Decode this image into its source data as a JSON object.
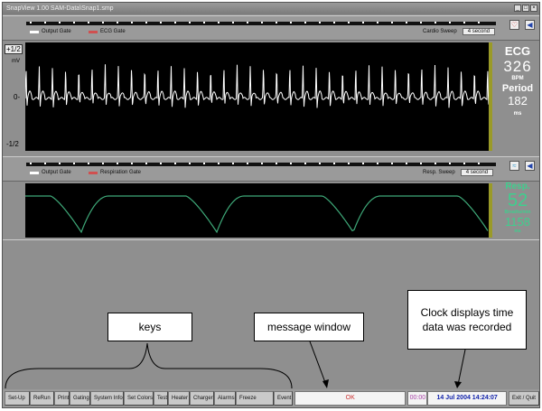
{
  "window": {
    "title": "SnapView 1.00  SAM-Data\\Snap1.smp"
  },
  "ecg_strip": {
    "legend": [
      {
        "label": "Output Gate",
        "color": "#ffffff"
      },
      {
        "label": "ECG Gate",
        "color": "#d05050"
      }
    ],
    "sweep_label": "Cardio Sweep",
    "sweep_value": "4 second",
    "heart_icon": "heart-icon",
    "sound_icon": "speaker-icon"
  },
  "ecg_plot": {
    "y_top": "+1/2",
    "unit": "mV",
    "y_zero": "0-",
    "y_bottom": "-1/2",
    "trace_color": "#ffffff"
  },
  "ecg_info": {
    "title": "ECG",
    "rate": "326",
    "rate_unit": "BPM",
    "period_label": "Period",
    "period": "182",
    "period_unit": "ms"
  },
  "resp_strip": {
    "legend": [
      {
        "label": "Output Gate",
        "color": "#ffffff"
      },
      {
        "label": "Respiration Gate",
        "color": "#d05050"
      }
    ],
    "sweep_label": "Resp. Sweep",
    "sweep_value": "4 second"
  },
  "resp_info": {
    "title": "Resp.",
    "rate": "52",
    "rate_unit": "Breaths/min",
    "period": "1158",
    "period_unit": "ms",
    "color": "#3ecf8e"
  },
  "annotations": {
    "keys": "keys",
    "message": "message window",
    "clock": "Clock displays time data was recorded"
  },
  "keys": [
    "Set-Up",
    "ReRun",
    "Print",
    "Gating",
    "System Info",
    "Set Colors",
    "Test",
    "Heater",
    "Charger",
    "Alarms",
    "Freeze",
    "Event"
  ],
  "status": {
    "message": "OK",
    "counter": "00:00",
    "clock": "14 Jul 2004  14:24:07",
    "exit": "Exit / Quit"
  }
}
